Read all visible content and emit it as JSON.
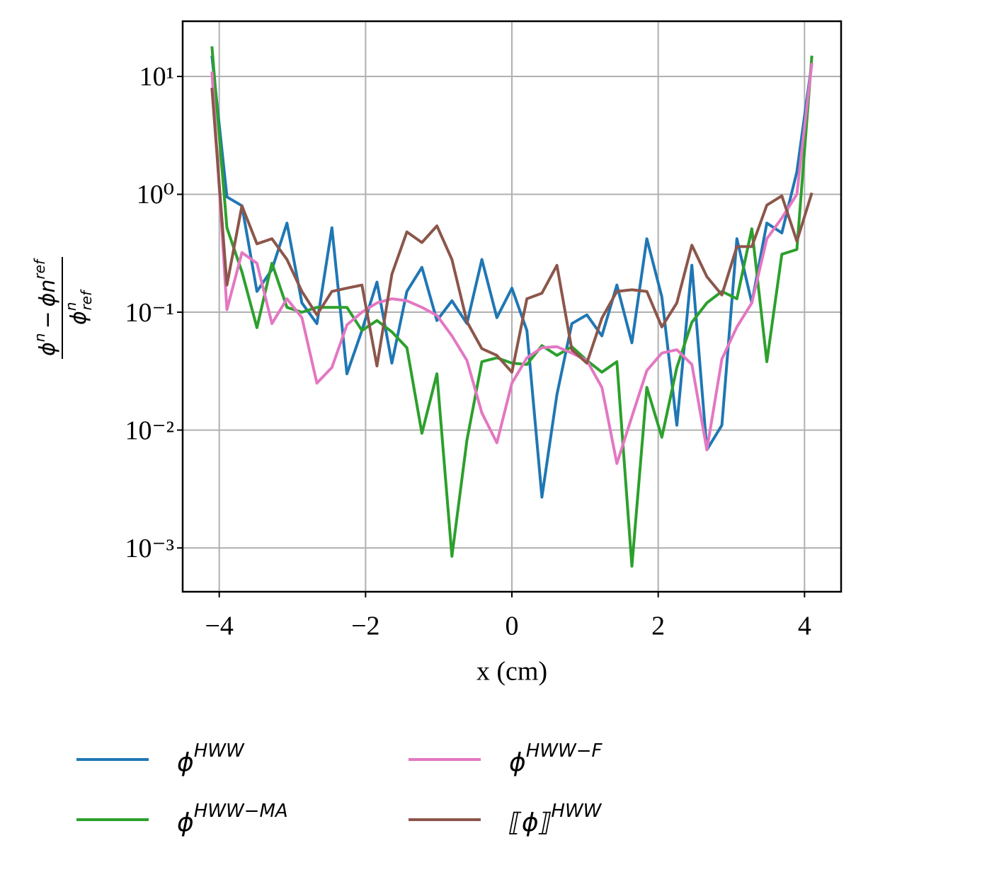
{
  "chart_data": {
    "type": "line",
    "xlabel": "x (cm)",
    "ylabel": {
      "numerator": [
        "ϕ",
        "n",
        "−",
        "ϕ",
        "n",
        "ref"
      ],
      "denominator": [
        "ϕ",
        "n",
        "ref"
      ]
    },
    "x": [
      -4.1,
      -3.895,
      -3.69,
      -3.485,
      -3.28,
      -3.075,
      -2.87,
      -2.665,
      -2.46,
      -2.255,
      -2.05,
      -1.845,
      -1.64,
      -1.435,
      -1.23,
      -1.025,
      -0.82,
      -0.615,
      -0.41,
      -0.205,
      0,
      0.205,
      0.41,
      0.615,
      0.82,
      1.025,
      1.23,
      1.435,
      1.64,
      1.845,
      2.05,
      2.255,
      2.46,
      2.665,
      2.87,
      3.075,
      3.28,
      3.485,
      3.69,
      3.895,
      4.1
    ],
    "series": [
      {
        "name": "ϕ",
        "name_superscript": "HWW",
        "color": "#1f77b4",
        "values": [
          15,
          0.95,
          0.8,
          0.15,
          0.23,
          0.57,
          0.12,
          0.08,
          0.52,
          0.03,
          0.07,
          0.18,
          0.037,
          0.15,
          0.24,
          0.085,
          0.125,
          0.08,
          0.28,
          0.09,
          0.16,
          0.07,
          0.0027,
          0.02,
          0.08,
          0.095,
          0.063,
          0.17,
          0.055,
          0.42,
          0.135,
          0.011,
          0.25,
          0.0068,
          0.011,
          0.42,
          0.12,
          0.57,
          0.47,
          1.55,
          13
        ]
      },
      {
        "name": "ϕ",
        "name_superscript": "HWW−MA",
        "color": "#2ca02c",
        "values": [
          18,
          0.52,
          0.22,
          0.074,
          0.26,
          0.11,
          0.1,
          0.11,
          0.11,
          0.11,
          0.07,
          0.085,
          0.068,
          0.05,
          0.0094,
          0.03,
          0.00085,
          0.0082,
          0.038,
          0.041,
          0.037,
          0.036,
          0.052,
          0.043,
          0.051,
          0.039,
          0.031,
          0.038,
          0.0007,
          0.023,
          0.0087,
          0.034,
          0.082,
          0.12,
          0.15,
          0.13,
          0.51,
          0.038,
          0.31,
          0.34,
          15
        ]
      },
      {
        "name": "ϕ",
        "name_superscript": "HWW−F",
        "color": "#e377c2",
        "values": [
          11,
          0.105,
          0.32,
          0.26,
          0.08,
          0.13,
          0.09,
          0.025,
          0.034,
          0.078,
          0.1,
          0.12,
          0.13,
          0.125,
          0.11,
          0.094,
          0.063,
          0.039,
          0.014,
          0.0078,
          0.025,
          0.041,
          0.05,
          0.051,
          0.045,
          0.039,
          0.023,
          0.0052,
          0.013,
          0.032,
          0.045,
          0.048,
          0.036,
          0.0068,
          0.04,
          0.075,
          0.12,
          0.42,
          0.63,
          1.0,
          13
        ]
      },
      {
        "name": "⟦ϕ⟧",
        "name_superscript": "HWW",
        "color": "#8c564b",
        "values": [
          8,
          0.17,
          0.8,
          0.38,
          0.42,
          0.28,
          0.15,
          0.095,
          0.15,
          0.16,
          0.17,
          0.035,
          0.21,
          0.48,
          0.39,
          0.54,
          0.28,
          0.083,
          0.049,
          0.043,
          0.031,
          0.13,
          0.145,
          0.25,
          0.048,
          0.037,
          0.089,
          0.15,
          0.155,
          0.15,
          0.075,
          0.12,
          0.37,
          0.2,
          0.14,
          0.36,
          0.36,
          0.81,
          0.97,
          0.4,
          1.03
        ]
      }
    ],
    "xlim": [
      -4.5,
      4.5
    ],
    "ylim": [
      0.000425,
      29.4
    ],
    "xticks": [
      {
        "value": -4,
        "label": "−4"
      },
      {
        "value": -2,
        "label": "−2"
      },
      0,
      2,
      4
    ],
    "yticks": [
      {
        "value": 0.001,
        "label": "10⁻³"
      },
      {
        "value": 0.01,
        "label": "10⁻²"
      },
      {
        "value": 0.1,
        "label": "10⁻¹"
      },
      {
        "value": 1,
        "label": "10⁰"
      },
      {
        "value": 10,
        "label": "10¹"
      }
    ],
    "log_y": true,
    "grid": true,
    "legend": "below"
  }
}
